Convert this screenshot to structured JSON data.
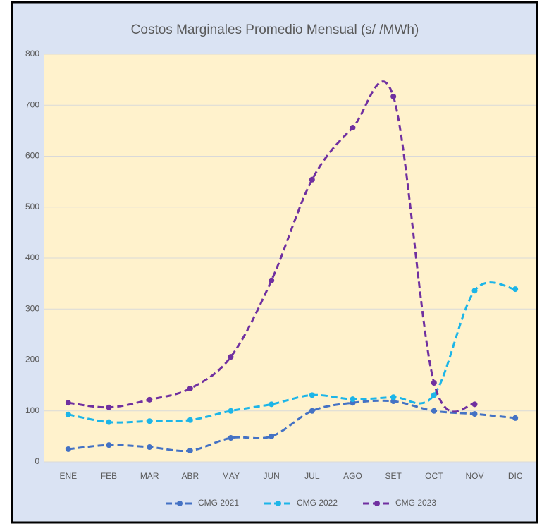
{
  "chart_data": {
    "type": "line",
    "title": "Costos Marginales Promedio Mensual (s/ /MWh)",
    "categories": [
      "ENE",
      "FEB",
      "MAR",
      "ABR",
      "MAY",
      "JUN",
      "JUL",
      "AGO",
      "SET",
      "OCT",
      "NOV",
      "DIC"
    ],
    "series": [
      {
        "name": "CMG 2021",
        "color": "#4472c4",
        "values": [
          25,
          33,
          29,
          22,
          47,
          50,
          100,
          116,
          119,
          100,
          94,
          86
        ]
      },
      {
        "name": "CMG 2022",
        "color": "#1cb5e8",
        "values": [
          93,
          78,
          80,
          82,
          100,
          113,
          131,
          123,
          127,
          131,
          336,
          339
        ]
      },
      {
        "name": "CMG 2023",
        "color": "#7030a0",
        "values": [
          116,
          107,
          122,
          144,
          206,
          356,
          554,
          656,
          717,
          155,
          113,
          null
        ]
      }
    ],
    "ylim": [
      0,
      800
    ],
    "yticks": [
      0,
      100,
      200,
      300,
      400,
      500,
      600,
      700,
      800
    ],
    "grid": true,
    "legend": "bottom"
  }
}
